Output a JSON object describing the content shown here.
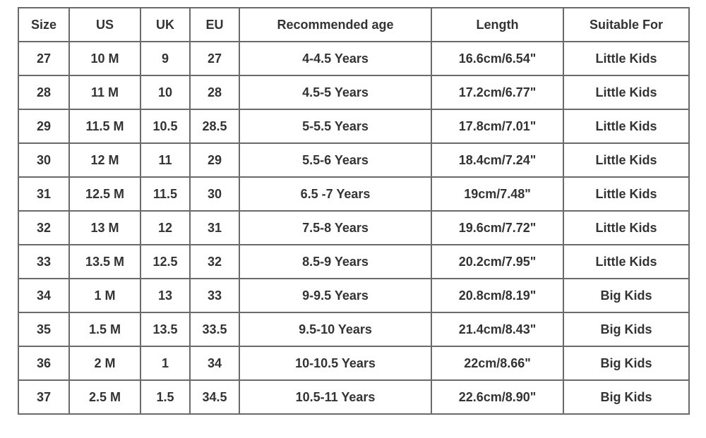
{
  "table": {
    "header": [
      "Size",
      "US",
      "UK",
      "EU",
      "Recommended age",
      "Length",
      "Suitable For"
    ],
    "rows": [
      [
        "27",
        "10 M",
        "9",
        "27",
        "4-4.5 Years",
        "16.6cm/6.54\"",
        "Little Kids"
      ],
      [
        "28",
        "11 M",
        "10",
        "28",
        "4.5-5 Years",
        "17.2cm/6.77\"",
        "Little Kids"
      ],
      [
        "29",
        "11.5 M",
        "10.5",
        "28.5",
        "5-5.5 Years",
        "17.8cm/7.01\"",
        "Little Kids"
      ],
      [
        "30",
        "12 M",
        "11",
        "29",
        "5.5-6 Years",
        "18.4cm/7.24\"",
        "Little Kids"
      ],
      [
        "31",
        "12.5 M",
        "11.5",
        "30",
        "6.5 -7 Years",
        "19cm/7.48\"",
        "Little Kids"
      ],
      [
        "32",
        "13 M",
        "12",
        "31",
        "7.5-8 Years",
        "19.6cm/7.72\"",
        "Little Kids"
      ],
      [
        "33",
        "13.5 M",
        "12.5",
        "32",
        "8.5-9 Years",
        "20.2cm/7.95\"",
        "Little Kids"
      ],
      [
        "34",
        "1 M",
        "13",
        "33",
        "9-9.5 Years",
        "20.8cm/8.19\"",
        "Big Kids"
      ],
      [
        "35",
        "1.5 M",
        "13.5",
        "33.5",
        "9.5-10 Years",
        "21.4cm/8.43\"",
        "Big Kids"
      ],
      [
        "36",
        "2 M",
        "1",
        "34",
        "10-10.5 Years",
        "22cm/8.66\"",
        "Big Kids"
      ],
      [
        "37",
        "2.5 M",
        "1.5",
        "34.5",
        "10.5-11 Years",
        "22.6cm/8.90\"",
        "Big Kids"
      ]
    ]
  }
}
